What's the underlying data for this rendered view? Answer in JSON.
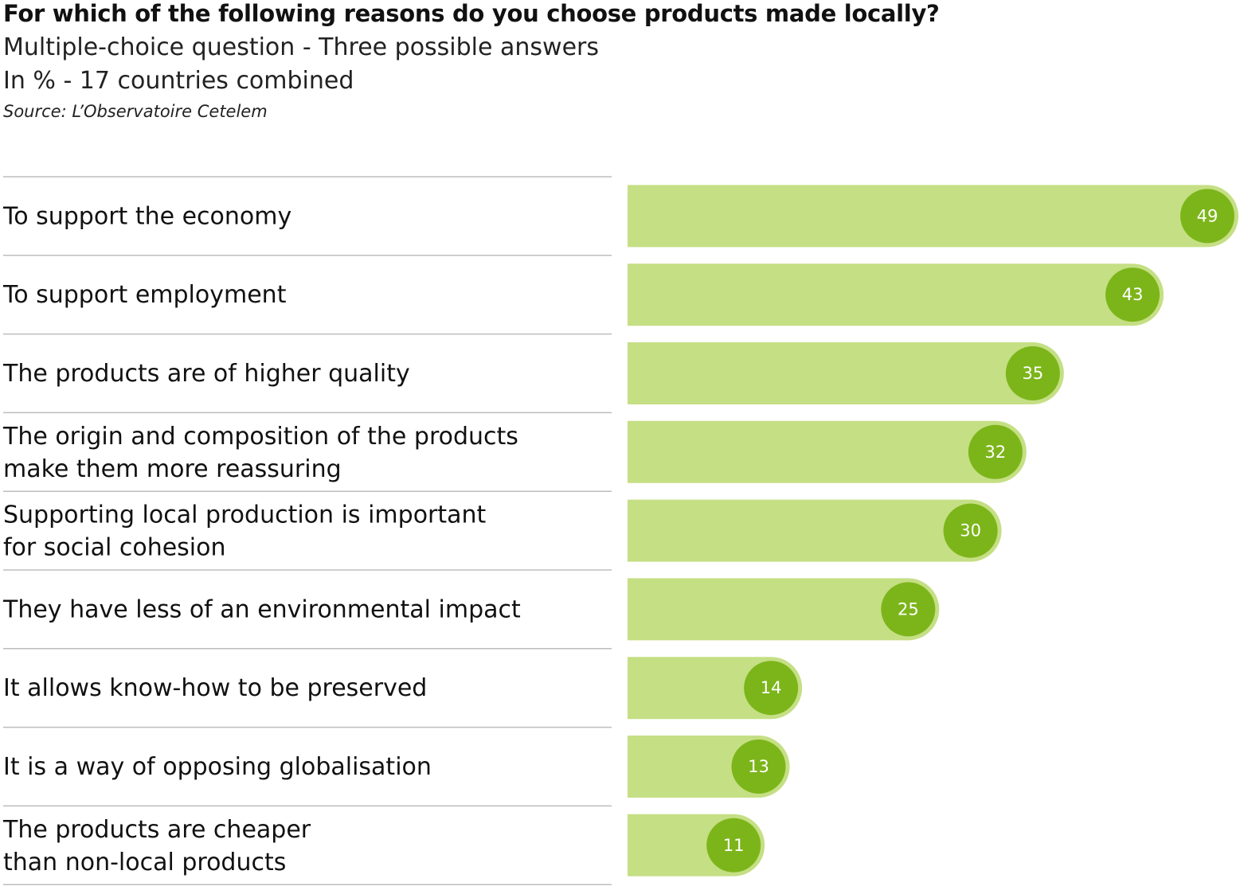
{
  "chart_data": {
    "type": "bar",
    "orientation": "horizontal",
    "title": "For which of the following reasons do you choose products made locally?",
    "subtitle": [
      "Multiple-choice question - Three possible answers",
      "In % - 17 countries combined"
    ],
    "source": "Source: L’Observatoire Cetelem",
    "categories": [
      [
        "To support the economy"
      ],
      [
        "To support employment"
      ],
      [
        "The products are of higher quality"
      ],
      [
        "The origin and composition of the products",
        "make them more reassuring"
      ],
      [
        "Supporting local production is important",
        "for social cohesion"
      ],
      [
        "They have less of an environmental impact"
      ],
      [
        "It allows know-how to be preserved"
      ],
      [
        "It is a way of opposing globalisation"
      ],
      [
        "The products are cheaper",
        "than non-local products"
      ]
    ],
    "values": [
      49,
      43,
      35,
      32,
      30,
      25,
      14,
      13,
      11
    ],
    "xlim": [
      0,
      49
    ],
    "grid": false,
    "legend": "none",
    "colors": {
      "bar": "#c5df84",
      "bubble": "#7cb51a",
      "separator": "#bdbdbd"
    }
  }
}
